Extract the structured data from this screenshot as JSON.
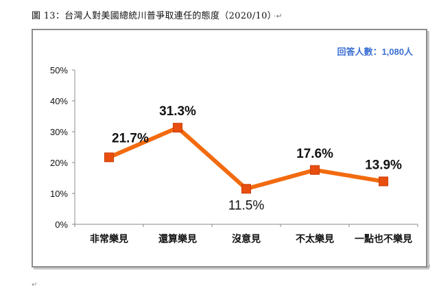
{
  "caption": {
    "text": "圖 13：台灣人對美國總統川普爭取連任的態度（2020/10）",
    "mark": "·↵"
  },
  "footer_mark": "↵",
  "chart_data": {
    "type": "line",
    "categories": [
      "非常樂見",
      "還算樂見",
      "沒意見",
      "不太樂見",
      "一點也不樂見"
    ],
    "series": [
      {
        "values": [
          21.7,
          31.3,
          11.5,
          17.6,
          13.9
        ],
        "labels": [
          "21.7%",
          "31.3%",
          "11.5%",
          "17.6%",
          "13.9%"
        ]
      }
    ],
    "yticks": [
      "0%",
      "10%",
      "20%",
      "30%",
      "40%",
      "50%"
    ],
    "ylim": [
      0,
      50
    ],
    "annotation": "回答人數：1,080人",
    "grid": false,
    "colors": {
      "line": "#f26b0f",
      "marker": "#e84e0f",
      "annotation": "#3b6fd3"
    }
  }
}
